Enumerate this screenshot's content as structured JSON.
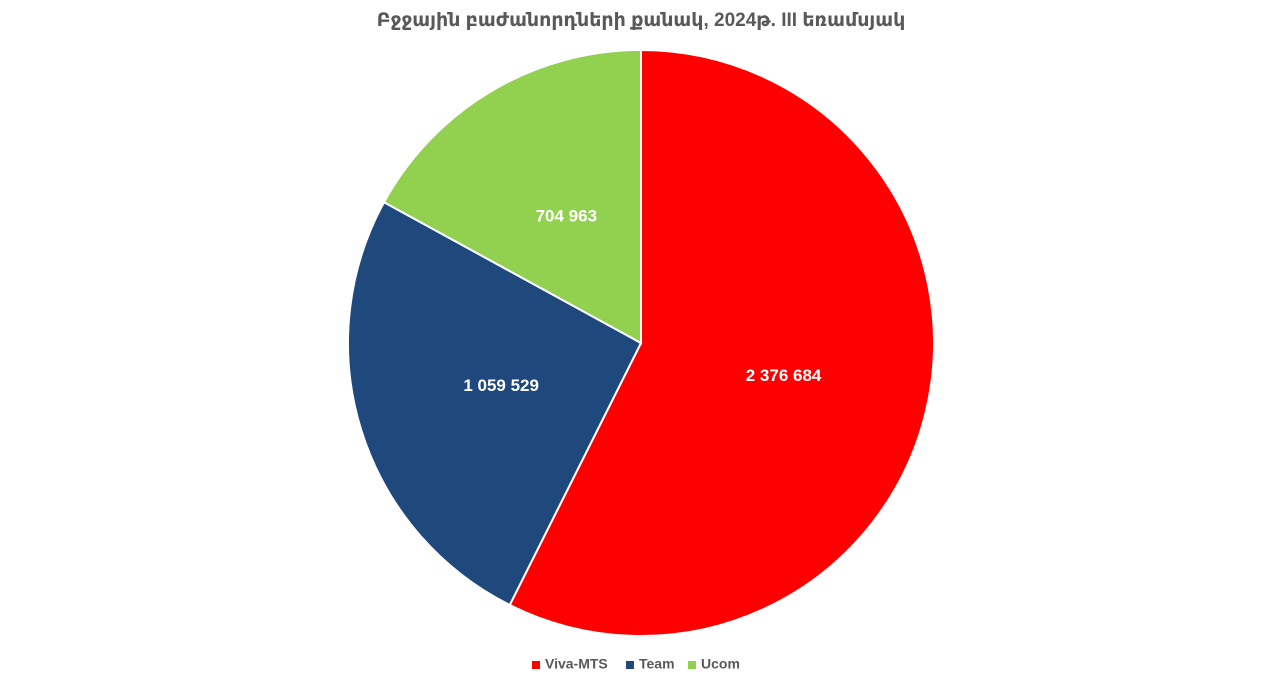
{
  "chart_data": {
    "type": "pie",
    "title": "Բջջային բաժանորդների քանակ, 2024թ. III եռամսյակ",
    "categories": [
      "Viva-MTS",
      "Team",
      "Ucom"
    ],
    "values": [
      2376684,
      1059529,
      704963
    ],
    "value_labels": [
      "2 376 684",
      "1 059 529",
      "704 963"
    ],
    "colors": [
      "#ff0000",
      "#1f497d",
      "#92d050"
    ],
    "legend": "bottom"
  }
}
